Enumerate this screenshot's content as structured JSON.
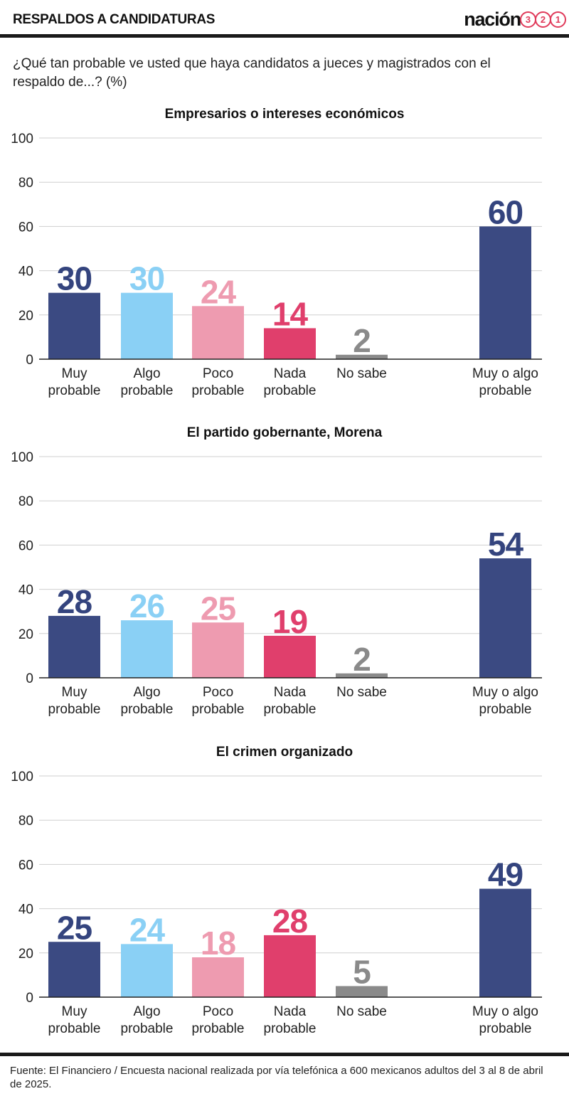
{
  "header": {
    "title": "RESPALDOS A CANDIDATURAS",
    "logo_word": "nación",
    "logo_numbers": [
      "3",
      "2",
      "1"
    ],
    "accent_color": "#e03a5a"
  },
  "subtitle": "¿Qué tan probable ve usted que haya candidatos a jueces y magistrados con el respaldo de...? (%)",
  "chart_data": [
    {
      "type": "bar",
      "title": "Empresarios o intereses económicos",
      "categories": [
        "Muy probable",
        "Algo probable",
        "Poco probable",
        "Nada probable",
        "No sabe",
        "Muy o algo probable"
      ],
      "values": [
        30,
        30,
        24,
        14,
        2,
        60
      ],
      "ylim": [
        0,
        100
      ],
      "yticks": [
        0,
        20,
        40,
        60,
        80,
        100
      ],
      "grid": true
    },
    {
      "type": "bar",
      "title": "El partido gobernante, Morena",
      "categories": [
        "Muy probable",
        "Algo probable",
        "Poco probable",
        "Nada probable",
        "No sabe",
        "Muy o algo probable"
      ],
      "values": [
        28,
        26,
        25,
        19,
        2,
        54
      ],
      "ylim": [
        0,
        100
      ],
      "yticks": [
        0,
        20,
        40,
        60,
        80,
        100
      ],
      "grid": true
    },
    {
      "type": "bar",
      "title": "El crimen organizado",
      "categories": [
        "Muy probable",
        "Algo probable",
        "Poco probable",
        "Nada probable",
        "No sabe",
        "Muy o algo probable"
      ],
      "values": [
        25,
        24,
        18,
        28,
        5,
        49
      ],
      "ylim": [
        0,
        100
      ],
      "yticks": [
        0,
        20,
        40,
        60,
        80,
        100
      ],
      "grid": true
    }
  ],
  "category_labels": [
    [
      "Muy",
      "probable"
    ],
    [
      "Algo",
      "probable"
    ],
    [
      "Poco",
      "probable"
    ],
    [
      "Nada",
      "probable"
    ],
    [
      "No sabe"
    ],
    [
      "Muy o algo",
      "probable"
    ]
  ],
  "colors": {
    "bars": [
      "#3b4a82",
      "#8ad0f5",
      "#ee9bb0",
      "#e03f6c",
      "#8a8a8a",
      "#3b4a82"
    ],
    "value_labels": [
      "#34447e",
      "#8ad0f5",
      "#ee9bb0",
      "#e03f6c",
      "#8a8a8a",
      "#34447e"
    ],
    "grid": "#cfcfcf",
    "axis": "#222222"
  },
  "footer": "Fuente: El Financiero / Encuesta nacional realizada por vía telefónica a 600 mexicanos adultos del 3 al 8 de abril de 2025."
}
